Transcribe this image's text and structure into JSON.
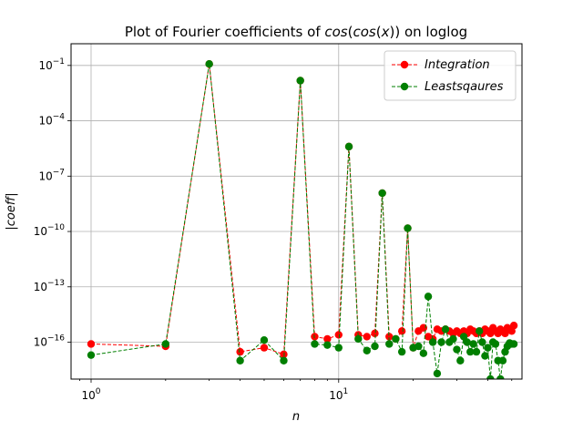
{
  "chart_data": {
    "type": "line",
    "title": "Plot of Fourier coefficients of cos(cos(x)) on loglog",
    "xlabel": "n",
    "ylabel": "|coeff|",
    "xscale": "log",
    "yscale": "log",
    "xlim": [
      0.83,
      55
    ],
    "ylim": [
      1e-18,
      1.5
    ],
    "grid": true,
    "legend_position": "top-right",
    "x_ticks": [
      {
        "value": 1,
        "label": "10^0"
      },
      {
        "value": 10,
        "label": "10^1"
      }
    ],
    "y_ticks": [
      {
        "value": 1e-16,
        "label": "10^-16"
      },
      {
        "value": 1e-13,
        "label": "10^-13"
      },
      {
        "value": 1e-10,
        "label": "10^-10"
      },
      {
        "value": 1e-07,
        "label": "10^-7"
      },
      {
        "value": 0.0001,
        "label": "10^-4"
      },
      {
        "value": 0.1,
        "label": "10^-1"
      }
    ],
    "series": [
      {
        "name": "Integration",
        "color": "#ff0000",
        "x": [
          1,
          2,
          3,
          4,
          5,
          6,
          7,
          8,
          9,
          10,
          11,
          12,
          13,
          14,
          15,
          16,
          17,
          18,
          19,
          20,
          21,
          22,
          23,
          24,
          25,
          26,
          27,
          28,
          29,
          30,
          31,
          32,
          33,
          34,
          35,
          36,
          37,
          38,
          39,
          40,
          41,
          42,
          43,
          44,
          45,
          46,
          47,
          48,
          49,
          50,
          51
        ],
        "y": [
          8e-17,
          6e-17,
          0.12,
          3e-17,
          5e-17,
          2.2e-17,
          0.015,
          2e-16,
          1.5e-16,
          2.5e-16,
          4e-06,
          2.5e-16,
          2e-16,
          3e-16,
          1.2e-08,
          2e-16,
          1.5e-16,
          4e-16,
          1.5e-10,
          5e-17,
          4e-16,
          6e-16,
          2e-16,
          1.5e-16,
          5e-16,
          4e-16,
          5e-16,
          4e-16,
          3e-16,
          4e-16,
          3e-16,
          4e-16,
          3e-16,
          5e-16,
          4e-16,
          3e-16,
          4e-16,
          3e-16,
          5e-16,
          4e-16,
          3e-16,
          6e-16,
          4e-16,
          3e-16,
          5e-16,
          4e-16,
          3e-16,
          6e-16,
          5e-16,
          4e-16,
          8e-16
        ]
      },
      {
        "name": "Leastsqaures",
        "color": "#007f00",
        "x": [
          1,
          2,
          3,
          4,
          5,
          6,
          7,
          8,
          9,
          10,
          11,
          12,
          13,
          14,
          15,
          16,
          17,
          18,
          19,
          20,
          21,
          22,
          23,
          24,
          25,
          26,
          27,
          28,
          29,
          30,
          31,
          32,
          33,
          34,
          35,
          36,
          37,
          38,
          39,
          40,
          41,
          42,
          43,
          44,
          45,
          46,
          47,
          48,
          49,
          50,
          51
        ],
        "y": [
          2e-17,
          8e-17,
          0.12,
          1e-17,
          1.3e-16,
          1e-17,
          0.015,
          8e-17,
          7e-17,
          5e-17,
          4e-06,
          1.5e-16,
          3.5e-17,
          6e-17,
          1.2e-08,
          8e-17,
          1.5e-16,
          3e-17,
          1.5e-10,
          5e-17,
          6e-17,
          2.5e-17,
          3e-14,
          1e-16,
          2e-18,
          1e-16,
          5e-16,
          1e-16,
          1.5e-16,
          4e-17,
          1e-17,
          2e-16,
          1e-16,
          3e-17,
          8e-17,
          3e-17,
          4e-16,
          1e-16,
          1.8e-17,
          5e-17,
          1e-18,
          1e-16,
          8e-17,
          1e-17,
          1e-18,
          1e-17,
          3e-17,
          6e-17,
          9e-17,
          8e-17,
          8e-17
        ]
      }
    ]
  }
}
